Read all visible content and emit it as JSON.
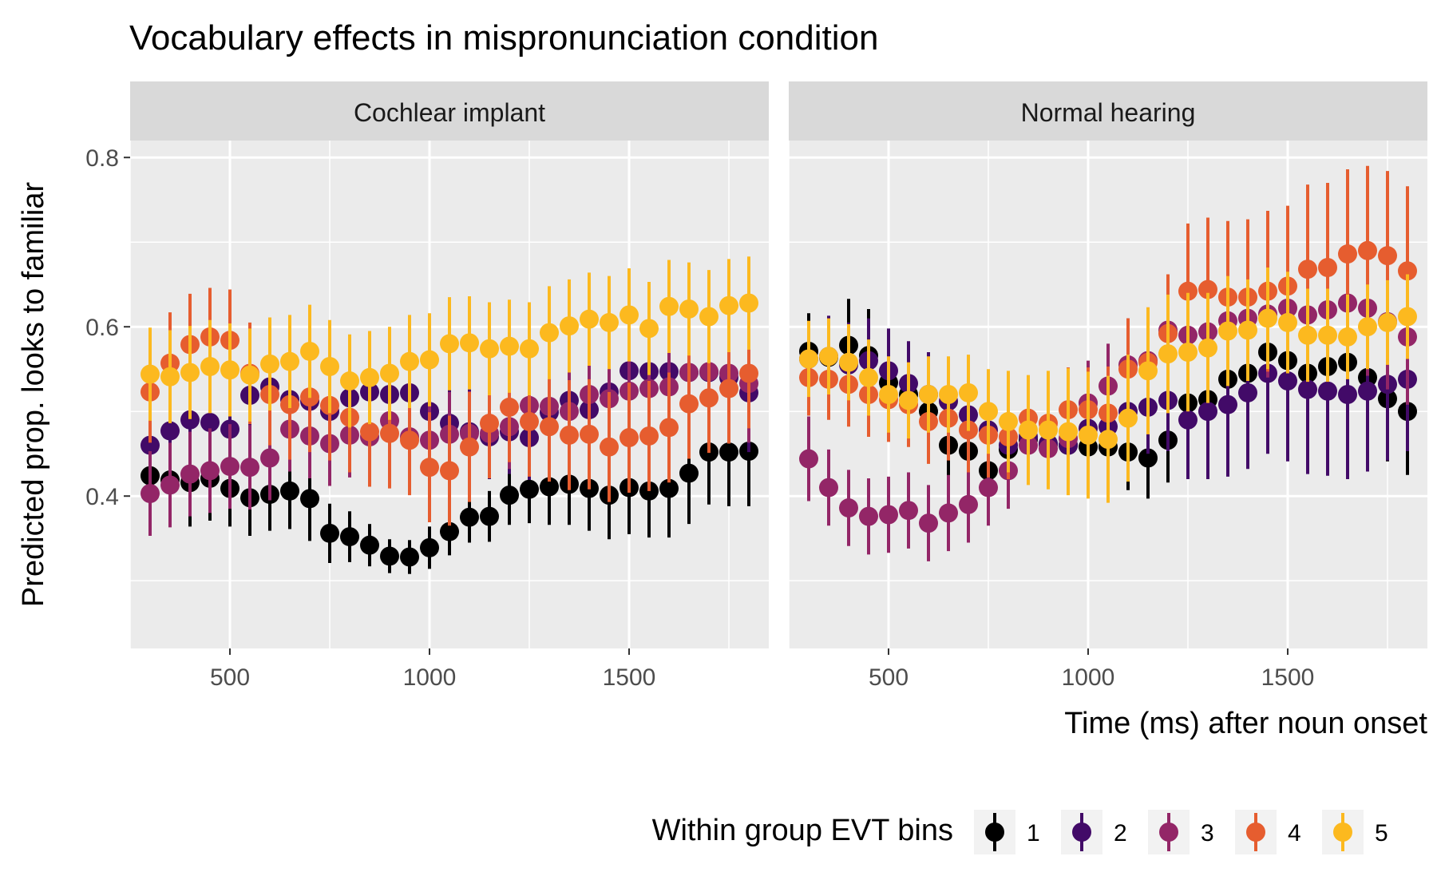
{
  "chart_data": {
    "type": "scatter",
    "title": "Vocabulary effects in mispronunciation condition",
    "xlabel": "Time (ms) after noun onset",
    "ylabel": "Predicted prop. looks to familiar",
    "xlim": [
      250,
      1850
    ],
    "ylim": [
      0.22,
      0.82
    ],
    "x_ticks": [
      500,
      1000,
      1500
    ],
    "x_tick_labels": [
      "500",
      "1000",
      "1500"
    ],
    "y_ticks": [
      0.4,
      0.6,
      0.8
    ],
    "y_tick_labels": [
      "0.4",
      "0.6",
      "0.8"
    ],
    "grid": true,
    "legend": {
      "title": "Within group EVT bins",
      "position": "bottom",
      "entries": [
        "1",
        "2",
        "3",
        "4",
        "5"
      ]
    },
    "colors": [
      "#000000",
      "#420a68",
      "#932667",
      "#e65d2f",
      "#fcb91f"
    ],
    "x": [
      300,
      350,
      400,
      450,
      500,
      550,
      600,
      650,
      700,
      750,
      800,
      850,
      900,
      950,
      1000,
      1050,
      1100,
      1150,
      1200,
      1250,
      1300,
      1350,
      1400,
      1450,
      1500,
      1550,
      1600,
      1650,
      1700,
      1750,
      1800
    ],
    "panels": [
      {
        "name": "Cochlear implant",
        "series": [
          {
            "name": "1",
            "y": [
              0.424,
              0.419,
              0.416,
              0.421,
              0.409,
              0.398,
              0.402,
              0.406,
              0.397,
              0.356,
              0.352,
              0.342,
              0.329,
              0.328,
              0.339,
              0.358,
              0.375,
              0.376,
              0.401,
              0.408,
              0.411,
              0.414,
              0.409,
              0.401,
              0.41,
              0.406,
              0.409,
              0.427,
              0.452,
              0.452,
              0.453
            ],
            "err": [
              0.055,
              0.055,
              0.052,
              0.05,
              0.045,
              0.045,
              0.043,
              0.045,
              0.05,
              0.035,
              0.03,
              0.025,
              0.02,
              0.02,
              0.025,
              0.028,
              0.03,
              0.03,
              0.035,
              0.04,
              0.045,
              0.048,
              0.05,
              0.052,
              0.055,
              0.055,
              0.058,
              0.06,
              0.062,
              0.064,
              0.065
            ]
          },
          {
            "name": "2",
            "y": [
              0.46,
              0.477,
              0.49,
              0.487,
              0.479,
              0.519,
              0.529,
              0.514,
              0.512,
              0.5,
              0.516,
              0.523,
              0.52,
              0.522,
              0.5,
              0.486,
              0.476,
              0.47,
              0.476,
              0.469,
              0.499,
              0.513,
              0.502,
              0.523,
              0.548,
              0.547,
              0.547,
              0.546,
              0.546,
              0.54,
              0.522
            ],
            "err": [
              0.06,
              0.06,
              0.06,
              0.058,
              0.055,
              0.05,
              0.048,
              0.05,
              0.05,
              0.05,
              0.05,
              0.05,
              0.05,
              0.05,
              0.05,
              0.05,
              0.05,
              0.05,
              0.05,
              0.05,
              0.052,
              0.055,
              0.055,
              0.058,
              0.06,
              0.062,
              0.064,
              0.066,
              0.068,
              0.07,
              0.07
            ]
          },
          {
            "name": "3",
            "y": [
              0.403,
              0.413,
              0.426,
              0.43,
              0.435,
              0.434,
              0.445,
              0.479,
              0.471,
              0.462,
              0.472,
              0.47,
              0.489,
              0.47,
              0.466,
              0.473,
              0.474,
              0.474,
              0.482,
              0.507,
              0.506,
              0.5,
              0.52,
              0.515,
              0.524,
              0.527,
              0.529,
              0.546,
              0.547,
              0.545,
              0.533
            ],
            "err": [
              0.05,
              0.05,
              0.05,
              0.05,
              0.05,
              0.05,
              0.05,
              0.05,
              0.05,
              0.05,
              0.05,
              0.05,
              0.05,
              0.05,
              0.05,
              0.05,
              0.05,
              0.05,
              0.05,
              0.05,
              0.052,
              0.055,
              0.055,
              0.058,
              0.06,
              0.062,
              0.064,
              0.066,
              0.068,
              0.07,
              0.07
            ]
          },
          {
            "name": "4",
            "y": [
              0.523,
              0.557,
              0.579,
              0.588,
              0.584,
              0.545,
              0.52,
              0.508,
              0.517,
              0.507,
              0.493,
              0.476,
              0.474,
              0.466,
              0.434,
              0.43,
              0.458,
              0.486,
              0.505,
              0.488,
              0.482,
              0.472,
              0.473,
              0.458,
              0.469,
              0.471,
              0.481,
              0.509,
              0.516,
              0.527,
              0.545
            ],
            "err": [
              0.06,
              0.06,
              0.06,
              0.058,
              0.06,
              0.06,
              0.06,
              0.065,
              0.065,
              0.065,
              0.065,
              0.065,
              0.065,
              0.065,
              0.065,
              0.065,
              0.065,
              0.065,
              0.065,
              0.065,
              0.065,
              0.065,
              0.065,
              0.065,
              0.065,
              0.065,
              0.065,
              0.065,
              0.065,
              0.065,
              0.065
            ]
          },
          {
            "name": "5",
            "y": [
              0.544,
              0.541,
              0.546,
              0.553,
              0.549,
              0.543,
              0.556,
              0.559,
              0.571,
              0.553,
              0.536,
              0.54,
              0.545,
              0.559,
              0.561,
              0.58,
              0.581,
              0.574,
              0.577,
              0.574,
              0.593,
              0.601,
              0.609,
              0.605,
              0.614,
              0.598,
              0.624,
              0.621,
              0.612,
              0.625,
              0.628
            ],
            "err": [
              0.055,
              0.055,
              0.055,
              0.055,
              0.055,
              0.055,
              0.055,
              0.055,
              0.055,
              0.055,
              0.055,
              0.055,
              0.055,
              0.055,
              0.055,
              0.055,
              0.055,
              0.055,
              0.055,
              0.055,
              0.055,
              0.055,
              0.055,
              0.055,
              0.055,
              0.055,
              0.055,
              0.055,
              0.055,
              0.055,
              0.055
            ]
          }
        ]
      },
      {
        "name": "Normal hearing",
        "series": [
          {
            "name": "1",
            "y": [
              0.571,
              0.564,
              0.578,
              0.566,
              0.534,
              0.52,
              0.5,
              0.46,
              0.453,
              0.43,
              0.455,
              0.467,
              0.461,
              0.46,
              0.458,
              0.458,
              0.452,
              0.445,
              0.466,
              0.51,
              0.514,
              0.538,
              0.545,
              0.57,
              0.56,
              0.545,
              0.553,
              0.558,
              0.54,
              0.515,
              0.5
            ],
            "err": [
              0.045,
              0.048,
              0.055,
              0.055,
              0.05,
              0.045,
              0.04,
              0.04,
              0.04,
              0.04,
              0.04,
              0.04,
              0.04,
              0.04,
              0.04,
              0.045,
              0.045,
              0.048,
              0.05,
              0.052,
              0.055,
              0.058,
              0.06,
              0.062,
              0.064,
              0.066,
              0.068,
              0.07,
              0.072,
              0.074,
              0.075
            ]
          },
          {
            "name": "2",
            "y": [
              0.562,
              0.565,
              0.555,
              0.56,
              0.548,
              0.533,
              0.52,
              0.512,
              0.496,
              0.478,
              0.46,
              0.47,
              0.462,
              0.46,
              0.48,
              0.482,
              0.5,
              0.505,
              0.513,
              0.49,
              0.5,
              0.508,
              0.522,
              0.545,
              0.536,
              0.526,
              0.524,
              0.52,
              0.524,
              0.532,
              0.538
            ],
            "err": [
              0.045,
              0.048,
              0.05,
              0.05,
              0.05,
              0.05,
              0.05,
              0.05,
              0.05,
              0.05,
              0.05,
              0.05,
              0.05,
              0.05,
              0.05,
              0.05,
              0.05,
              0.055,
              0.06,
              0.07,
              0.08,
              0.085,
              0.09,
              0.095,
              0.095,
              0.1,
              0.1,
              0.1,
              0.095,
              0.09,
              0.085
            ]
          },
          {
            "name": "3",
            "y": [
              0.444,
              0.41,
              0.386,
              0.376,
              0.378,
              0.383,
              0.368,
              0.38,
              0.39,
              0.41,
              0.43,
              0.46,
              0.456,
              0.468,
              0.51,
              0.53,
              0.555,
              0.56,
              0.596,
              0.59,
              0.594,
              0.607,
              0.61,
              0.615,
              0.622,
              0.614,
              0.62,
              0.628,
              0.622,
              0.606,
              0.588
            ],
            "err": [
              0.05,
              0.045,
              0.045,
              0.045,
              0.045,
              0.045,
              0.045,
              0.045,
              0.045,
              0.045,
              0.045,
              0.045,
              0.045,
              0.045,
              0.05,
              0.05,
              0.055,
              0.06,
              0.06,
              0.065,
              0.065,
              0.07,
              0.07,
              0.075,
              0.075,
              0.075,
              0.08,
              0.08,
              0.08,
              0.08,
              0.08
            ]
          },
          {
            "name": "4",
            "y": [
              0.54,
              0.538,
              0.532,
              0.52,
              0.514,
              0.508,
              0.488,
              0.492,
              0.478,
              0.472,
              0.47,
              0.492,
              0.486,
              0.502,
              0.502,
              0.498,
              0.55,
              0.558,
              0.592,
              0.642,
              0.644,
              0.635,
              0.635,
              0.642,
              0.648,
              0.668,
              0.67,
              0.686,
              0.69,
              0.684,
              0.666
            ],
            "err": [
              0.045,
              0.048,
              0.05,
              0.05,
              0.05,
              0.05,
              0.05,
              0.05,
              0.05,
              0.05,
              0.05,
              0.05,
              0.05,
              0.05,
              0.05,
              0.055,
              0.06,
              0.065,
              0.07,
              0.08,
              0.085,
              0.09,
              0.092,
              0.095,
              0.095,
              0.1,
              0.1,
              0.1,
              0.1,
              0.1,
              0.1
            ]
          },
          {
            "name": "5",
            "y": [
              0.562,
              0.565,
              0.558,
              0.54,
              0.52,
              0.513,
              0.52,
              0.52,
              0.522,
              0.5,
              0.488,
              0.478,
              0.478,
              0.476,
              0.472,
              0.467,
              0.492,
              0.548,
              0.568,
              0.57,
              0.575,
              0.595,
              0.596,
              0.61,
              0.605,
              0.59,
              0.59,
              0.588,
              0.6,
              0.605,
              0.612
            ],
            "err": [
              0.045,
              0.045,
              0.045,
              0.045,
              0.045,
              0.045,
              0.045,
              0.045,
              0.045,
              0.05,
              0.06,
              0.065,
              0.07,
              0.075,
              0.075,
              0.075,
              0.075,
              0.075,
              0.07,
              0.07,
              0.065,
              0.065,
              0.06,
              0.06,
              0.06,
              0.055,
              0.055,
              0.05,
              0.05,
              0.05,
              0.05
            ]
          }
        ]
      }
    ]
  }
}
